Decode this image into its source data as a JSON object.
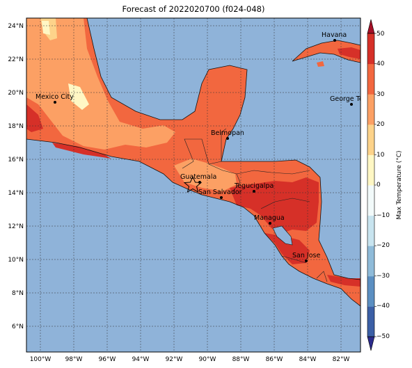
{
  "title": "Forecast of 2022020700 (f024-048)",
  "colorbar": {
    "label": "Max Temperature (°C)",
    "ticks": [
      "50",
      "40",
      "30",
      "20",
      "10",
      "0",
      "−10",
      "−20",
      "−30",
      "−40",
      "−50"
    ],
    "colors": [
      "#2b2b8c",
      "#3b5fa6",
      "#5b8fc2",
      "#8fbbd9",
      "#c8e4ef",
      "#f2fafa",
      "#fff7c4",
      "#fdd38a",
      "#fca064",
      "#f2673f",
      "#d63028",
      "#a50f26"
    ]
  },
  "map": {
    "ocean_color": "#8fb3d9",
    "lat_labels": [
      "24°N",
      "22°N",
      "20°N",
      "18°N",
      "16°N",
      "14°N",
      "12°N",
      "10°N",
      "8°N",
      "6°N"
    ],
    "lon_labels": [
      "100°W",
      "98°W",
      "96°W",
      "94°W",
      "92°W",
      "90°W",
      "88°W",
      "86°W",
      "84°W",
      "82°W"
    ]
  },
  "cities": [
    {
      "name": "Havana"
    },
    {
      "name": "Mexico City"
    },
    {
      "name": "George Tov"
    },
    {
      "name": "Belmopan"
    },
    {
      "name": "Guatemala"
    },
    {
      "name": "San Salvador"
    },
    {
      "name": "Tegucigalpa"
    },
    {
      "name": "Managua"
    },
    {
      "name": "San Jose"
    }
  ]
}
